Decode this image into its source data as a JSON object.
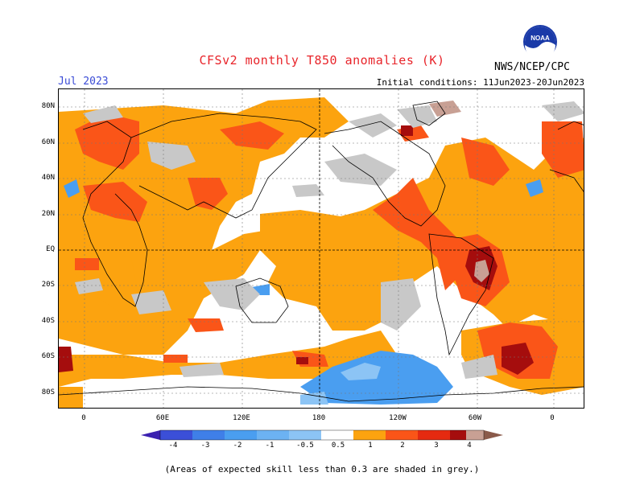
{
  "header": {
    "title": "CFSv2 monthly T850 anomalies (K)",
    "month": "Jul 2023",
    "initial_conditions": "Initial conditions: 11Jun2023-20Jun2023",
    "agency": "NWS/NCEP/CPC",
    "logo_text": "NOAA"
  },
  "map": {
    "lat_labels": [
      "80N",
      "60N",
      "40N",
      "20N",
      "EQ",
      "20S",
      "40S",
      "60S",
      "80S"
    ],
    "lon_labels": [
      "0",
      "60E",
      "120E",
      "180",
      "120W",
      "60W",
      "0"
    ],
    "colors": {
      "purple": "#3b21b0",
      "blue1": "#3b4fd8",
      "blue2": "#3f7fe8",
      "blue3": "#4a9ef0",
      "blue4": "#8cc4f5",
      "white": "#ffffff",
      "orange": "#fca30f",
      "redorange": "#fa5518",
      "red": "#e52a10",
      "darkred": "#a50d0d",
      "rose": "#c8a094",
      "brown": "#8a5a4a",
      "grey": "#c8c8c8"
    }
  },
  "colorbar": {
    "labels": [
      "-4",
      "-3",
      "-2",
      "-1",
      "-0.5",
      "0.5",
      "1",
      "2",
      "3",
      "4"
    ]
  },
  "footnote": "(Areas of expected skill less than 0.3 are shaded in grey.)"
}
